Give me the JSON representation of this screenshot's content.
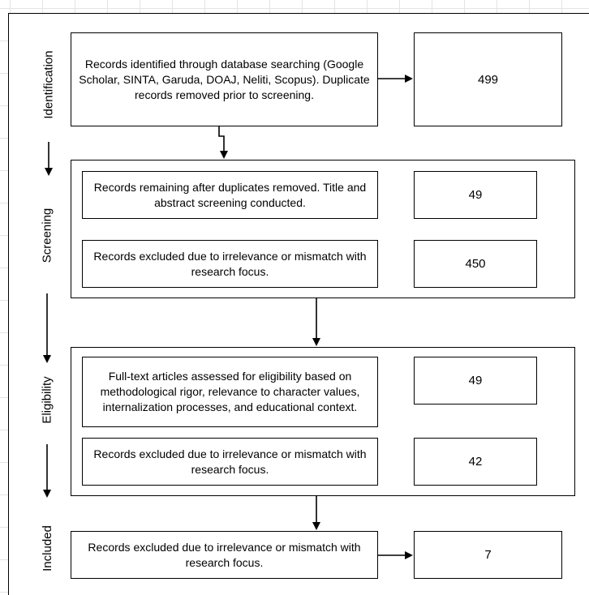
{
  "stages": {
    "identification": "Identification",
    "screening": "Screening",
    "eligibility": "Eligibility",
    "included": "Included"
  },
  "identification": {
    "records": "Records identified through database searching (Google Scholar, SINTA, Garuda, DOAJ, Neliti, Scopus). Duplicate records removed prior to screening.",
    "count": "499"
  },
  "screening": {
    "remaining": "Records remaining after duplicates removed. Title and abstract screening conducted.",
    "remaining_count": "49",
    "excluded": "Records excluded due to irrelevance or mismatch with research focus.",
    "excluded_count": "450"
  },
  "eligibility": {
    "assessed": "Full-text articles assessed for eligibility based on methodological rigor, relevance to character values, internalization processes, and educational context.",
    "assessed_count": "49",
    "excluded": "Records excluded due to irrelevance or mismatch with research focus.",
    "excluded_count": "42"
  },
  "included": {
    "records": "Records excluded due to irrelevance or mismatch with research focus.",
    "count": "7"
  }
}
